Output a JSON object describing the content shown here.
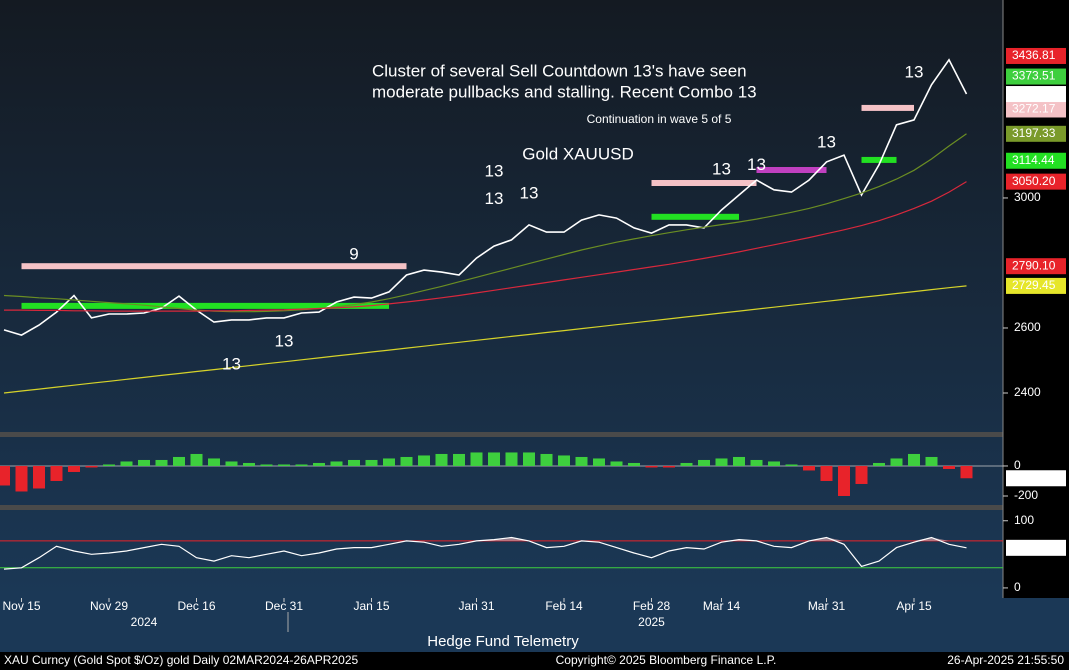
{
  "chart_data": [
    {
      "type": "line",
      "title": "Gold XAUUSD",
      "note_lines": [
        "Cluster of several Sell Countdown 13's have seen",
        "moderate pullbacks and stalling. Recent Combo 13"
      ],
      "subnote": "Continuation in wave 5 of 5",
      "categories": [
        null,
        "Nov 15",
        null,
        null,
        null,
        null,
        "Nov 29",
        null,
        null,
        null,
        null,
        "Dec 16",
        null,
        null,
        null,
        null,
        "Dec 31",
        null,
        null,
        null,
        null,
        "Jan 15",
        null,
        null,
        null,
        null,
        null,
        "Jan 31",
        null,
        null,
        null,
        null,
        "Feb 14",
        null,
        null,
        null,
        null,
        "Feb 28",
        null,
        null,
        null,
        "Mar 14",
        null,
        null,
        null,
        null,
        null,
        "Mar 31",
        null,
        null,
        null,
        null,
        "Apr 15",
        null,
        null,
        null
      ],
      "years": [
        {
          "label": "2024",
          "x": 8
        },
        {
          "label": "2025",
          "x": 37
        }
      ],
      "ylim": [
        2280,
        3609
      ],
      "yticks": [
        2400,
        2600,
        3000
      ],
      "series": [
        {
          "name": "Price",
          "color": "#ffffff",
          "values": [
            2594,
            2578,
            2609,
            2649,
            2700,
            2631,
            2643,
            2643,
            2646,
            2661,
            2698,
            2655,
            2618,
            2625,
            2625,
            2631,
            2631,
            2646,
            2649,
            2680,
            2695,
            2692,
            2711,
            2763,
            2778,
            2772,
            2763,
            2815,
            2852,
            2871,
            2917,
            2895,
            2895,
            2932,
            2948,
            2938,
            2908,
            2892,
            2917,
            2917,
            2908,
            2963,
            3009,
            3055,
            3025,
            3018,
            3055,
            3111,
            3132,
            3009,
            3102,
            3225,
            3240,
            3348,
            3425,
            3319.72
          ]
        },
        {
          "name": "MA 50",
          "color": "#6b8e23",
          "values": [
            2700,
            2697,
            2693,
            2690,
            2686,
            2682,
            2678,
            2674,
            2670,
            2665,
            2660,
            2655,
            2652,
            2650,
            2650,
            2651,
            2653,
            2656,
            2660,
            2665,
            2672,
            2680,
            2690,
            2702,
            2715,
            2728,
            2742,
            2756,
            2770,
            2784,
            2798,
            2812,
            2826,
            2840,
            2852,
            2864,
            2874,
            2884,
            2893,
            2902,
            2910,
            2918,
            2926,
            2935,
            2945,
            2956,
            2968,
            2982,
            2998,
            3015,
            3035,
            3058,
            3085,
            3120,
            3160,
            3197.33
          ]
        },
        {
          "name": "MA 100",
          "color": "#d8283c",
          "values": [
            2655,
            2655,
            2654,
            2654,
            2653,
            2653,
            2652,
            2652,
            2652,
            2652,
            2652,
            2652,
            2653,
            2653,
            2654,
            2655,
            2656,
            2658,
            2660,
            2662,
            2665,
            2669,
            2674,
            2680,
            2686,
            2693,
            2700,
            2708,
            2716,
            2724,
            2732,
            2740,
            2748,
            2756,
            2764,
            2772,
            2780,
            2788,
            2796,
            2805,
            2814,
            2824,
            2834,
            2845,
            2856,
            2867,
            2878,
            2890,
            2902,
            2915,
            2930,
            2948,
            2968,
            2990,
            3018,
            3050.2
          ]
        },
        {
          "name": "MA 200",
          "color": "#d6d32a",
          "values": [
            2400,
            2406,
            2412,
            2418,
            2424,
            2430,
            2436,
            2442,
            2448,
            2454,
            2460,
            2466,
            2472,
            2478,
            2484,
            2490,
            2496,
            2502,
            2508,
            2514,
            2520,
            2526,
            2532,
            2538,
            2544,
            2550,
            2556,
            2562,
            2568,
            2574,
            2580,
            2586,
            2592,
            2598,
            2604,
            2610,
            2616,
            2622,
            2628,
            2634,
            2640,
            2646,
            2652,
            2658,
            2664,
            2670,
            2676,
            2682,
            2688,
            2694,
            2700,
            2706,
            2712,
            2718,
            2724,
            2729.45
          ]
        }
      ],
      "levels": [
        {
          "value": 2790.1,
          "color": "#f4c2c6",
          "from": 1,
          "to": 23
        },
        {
          "value": 2668,
          "color": "#22e022",
          "from": 1,
          "to": 22
        },
        {
          "value": 3046,
          "color": "#f4c2c6",
          "from": 37,
          "to": 43
        },
        {
          "value": 2942,
          "color": "#22e022",
          "from": 37,
          "to": 42
        },
        {
          "value": 3086,
          "color": "#c040c0",
          "from": 43,
          "to": 47
        },
        {
          "value": 3277,
          "color": "#f4c2c6",
          "from": 49,
          "to": 52
        },
        {
          "value": 3117,
          "color": "#22e022",
          "from": 49,
          "to": 51
        }
      ],
      "annotations": [
        {
          "text": "13",
          "color": "#e8a030",
          "x": 13,
          "y": 2486
        },
        {
          "text": "13",
          "color": "#e8232a",
          "x": 16,
          "y": 2557
        },
        {
          "text": "9",
          "color": "#3ecf3e",
          "x": 20,
          "y": 2825
        },
        {
          "text": "13",
          "color": "#d63fd6",
          "x": 28,
          "y": 3080
        },
        {
          "text": "13",
          "color": "#e8a030",
          "x": 28,
          "y": 2995
        },
        {
          "text": "13",
          "color": "#d63fd6",
          "x": 30,
          "y": 3012
        },
        {
          "text": "13",
          "color": "#e8a030",
          "x": 41,
          "y": 3086
        },
        {
          "text": "13",
          "color": "#e8232a",
          "x": 43,
          "y": 3100
        },
        {
          "text": "13",
          "color": "#d63fd6",
          "x": 47,
          "y": 3169
        },
        {
          "text": "13",
          "color": "#d63fd6",
          "x": 52,
          "y": 3385
        }
      ],
      "price_labels": [
        {
          "value": 3436.81,
          "color": "#e8232a"
        },
        {
          "value": 3373.51,
          "color": "#3ecf3e"
        },
        {
          "value": 3272.17,
          "color": "#f4c2c6"
        },
        {
          "value": 3197.33,
          "color": "#7a9a2a"
        },
        {
          "value": 3114.44,
          "color": "#22e022"
        },
        {
          "value": 3050.2,
          "label": "3050.20",
          "color": "#e8232a"
        },
        {
          "value": 2790.1,
          "label": "2790.10",
          "color": "#e8232a"
        },
        {
          "value": 2729.45,
          "color": "#e6e62a"
        }
      ]
    },
    {
      "type": "bar",
      "ylim": [
        -260,
        193
      ],
      "yticks": [
        0,
        -200
      ],
      "pos_color": "#3ecf3e",
      "neg_color": "#e8232a",
      "values": [
        -130,
        -170,
        -150,
        -100,
        -40,
        -10,
        10,
        30,
        40,
        40,
        60,
        80,
        50,
        30,
        20,
        10,
        10,
        10,
        20,
        30,
        40,
        40,
        50,
        60,
        70,
        80,
        80,
        90,
        90,
        90,
        90,
        80,
        70,
        60,
        50,
        30,
        20,
        -10,
        -10,
        20,
        40,
        50,
        60,
        40,
        30,
        10,
        -30,
        -100,
        -200,
        -120,
        20,
        50,
        80,
        60,
        -20,
        -81.8857
      ]
    },
    {
      "type": "line",
      "ylim": [
        -15,
        116
      ],
      "yticks": [
        0,
        100
      ],
      "color": "#ffffff",
      "bands": [
        {
          "value": 70,
          "color": "#e8232a"
        },
        {
          "value": 30,
          "color": "#3ecf3e"
        }
      ],
      "values": [
        28,
        30,
        45,
        62,
        55,
        50,
        52,
        55,
        60,
        65,
        62,
        45,
        40,
        48,
        45,
        50,
        55,
        48,
        52,
        58,
        60,
        60,
        65,
        70,
        68,
        62,
        65,
        70,
        72,
        75,
        70,
        60,
        62,
        70,
        68,
        60,
        52,
        45,
        55,
        60,
        58,
        68,
        72,
        70,
        62,
        60,
        70,
        75,
        65,
        32,
        40,
        60,
        68,
        75,
        65,
        59.6806
      ]
    }
  ],
  "footer": {
    "brand": "Hedge Fund Telemetry",
    "security": "XAU Curncy (Gold Spot  $/Oz) gold  Daily 02MAR2024-26APR2025",
    "copyright": "Copyright© 2025 Bloomberg Finance L.P.",
    "timestamp": "26-Apr-2025 21:55:50"
  }
}
